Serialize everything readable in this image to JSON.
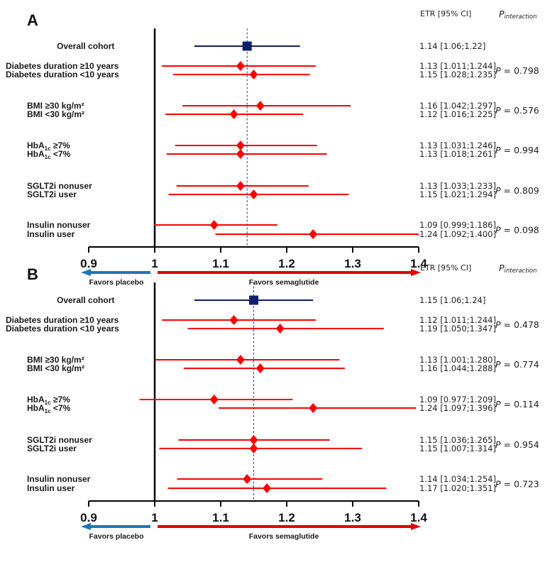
{
  "chart_data": [
    {
      "type": "forest",
      "panel_label": "A",
      "header": {
        "etr": "ETR [95% CI]",
        "p_main": "P",
        "p_sub": "interaction"
      },
      "xlim": [
        0.9,
        1.4
      ],
      "xticks": [
        "0.9",
        "1",
        "1.1",
        "1.2",
        "1.3",
        "1.4"
      ],
      "xtick_values": [
        0.9,
        1.0,
        1.1,
        1.2,
        1.3,
        1.4
      ],
      "reference_line": 1.0,
      "overall_line": 1.14,
      "arrows": {
        "left": "Favors placebo",
        "right": "Favors semaglutide"
      },
      "colors": {
        "overall": "#0d1f6b",
        "subgroup": "#ff0000",
        "left_arrow": "#1f77b4",
        "right_arrow": "#e00000"
      },
      "rows": [
        {
          "label": "Overall cohort",
          "est": 1.14,
          "lo": 1.06,
          "hi": 1.22,
          "text": "1.14 [1.06;1.22]",
          "overall": true
        },
        {
          "label": "Diabetes duration ≥10 years",
          "est": 1.13,
          "lo": 1.011,
          "hi": 1.244,
          "text": "1.13 [1.011;1.244]",
          "p": "P = 0.798"
        },
        {
          "label": "Diabetes duration <10 years",
          "est": 1.15,
          "lo": 1.028,
          "hi": 1.235,
          "text": "1.15 [1.028;1.235]"
        },
        {
          "label": "BMI ≥30 kg/m²",
          "est": 1.16,
          "lo": 1.042,
          "hi": 1.297,
          "text": "1.16 [1.042;1.297]",
          "p": "P = 0.576"
        },
        {
          "label": "BMI <30 kg/m²",
          "est": 1.12,
          "lo": 1.016,
          "hi": 1.225,
          "text": "1.12 [1.016;1.225]"
        },
        {
          "label": "HbA",
          "sub": "1c",
          "suffix": " ≥7%",
          "est": 1.13,
          "lo": 1.031,
          "hi": 1.246,
          "text": "1.13 [1.031;1.246]",
          "p": "P = 0.994"
        },
        {
          "label": "HbA",
          "sub": "1c",
          "suffix": " <7%",
          "est": 1.13,
          "lo": 1.018,
          "hi": 1.261,
          "text": "1.13 [1.018;1.261]"
        },
        {
          "label": "SGLT2i nonuser",
          "est": 1.13,
          "lo": 1.033,
          "hi": 1.233,
          "text": "1.13 [1.033;1.233]",
          "p": "P = 0.809"
        },
        {
          "label": "SGLT2i user",
          "est": 1.15,
          "lo": 1.021,
          "hi": 1.294,
          "text": "1.15 [1.021;1.294]"
        },
        {
          "label": "Insulin nonuser",
          "est": 1.09,
          "lo": 0.999,
          "hi": 1.186,
          "text": "1.09 [0.999;1.186]",
          "p": "P = 0.098"
        },
        {
          "label": "Insulin user",
          "est": 1.24,
          "lo": 1.092,
          "hi": 1.4,
          "text": "1.24 [1.092;1.400]"
        }
      ]
    },
    {
      "type": "forest",
      "panel_label": "B",
      "header": {
        "etr": "ETR [95% CI]",
        "p_main": "P",
        "p_sub": "interaction"
      },
      "xlim": [
        0.9,
        1.4
      ],
      "xticks": [
        "0.9",
        "1",
        "1.1",
        "1.2",
        "1.3",
        "1.4"
      ],
      "xtick_values": [
        0.9,
        1.0,
        1.1,
        1.2,
        1.3,
        1.4
      ],
      "reference_line": 1.0,
      "overall_line": 1.15,
      "arrows": {
        "left": "Favors placebo",
        "right": "Favors semaglutide"
      },
      "colors": {
        "overall": "#0d1f6b",
        "subgroup": "#ff0000",
        "left_arrow": "#1f77b4",
        "right_arrow": "#e00000"
      },
      "rows": [
        {
          "label": "Overall cohort",
          "est": 1.15,
          "lo": 1.06,
          "hi": 1.24,
          "text": "1.15 [1.06;1.24]",
          "overall": true
        },
        {
          "label": "Diabetes duration ≥10 years",
          "est": 1.12,
          "lo": 1.011,
          "hi": 1.244,
          "text": "1.12 [1.011;1.244]",
          "p": "P = 0.478"
        },
        {
          "label": "Diabetes duration <10 years",
          "est": 1.19,
          "lo": 1.05,
          "hi": 1.347,
          "text": "1.19 [1.050;1.347]"
        },
        {
          "label": "BMI ≥30 kg/m²",
          "est": 1.13,
          "lo": 1.001,
          "hi": 1.28,
          "text": "1.13 [1.001;1.280]",
          "p": "P = 0.774"
        },
        {
          "label": "BMI <30 kg/m²",
          "est": 1.16,
          "lo": 1.044,
          "hi": 1.288,
          "text": "1.16 [1.044;1.288]"
        },
        {
          "label": "HbA",
          "sub": "1c",
          "suffix": " ≥7%",
          "est": 1.09,
          "lo": 0.977,
          "hi": 1.209,
          "text": "1.09 [0.977;1.209]",
          "p": "P = 0.114"
        },
        {
          "label": "HbA",
          "sub": "1c",
          "suffix": " <7%",
          "est": 1.24,
          "lo": 1.097,
          "hi": 1.396,
          "text": "1.24 [1.097;1.396]"
        },
        {
          "label": "SGLT2i nonuser",
          "est": 1.15,
          "lo": 1.036,
          "hi": 1.265,
          "text": "1.15 [1.036;1.265]",
          "p": "P = 0.954"
        },
        {
          "label": "SGLT2i user",
          "est": 1.15,
          "lo": 1.007,
          "hi": 1.314,
          "text": "1.15 [1.007;1.314]"
        },
        {
          "label": "Insulin nonuser",
          "est": 1.14,
          "lo": 1.034,
          "hi": 1.254,
          "text": "1.14 [1.034;1.254]",
          "p": "P = 0.723"
        },
        {
          "label": "Insulin user",
          "est": 1.17,
          "lo": 1.02,
          "hi": 1.351,
          "text": "1.17 [1.020;1.351]"
        }
      ]
    }
  ]
}
